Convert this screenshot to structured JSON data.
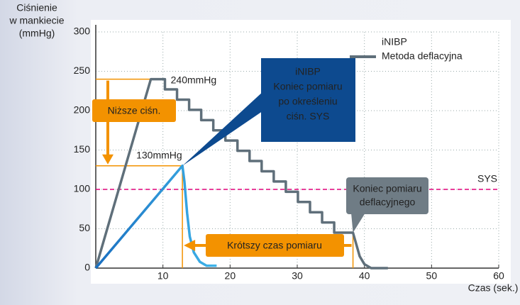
{
  "chart_data": {
    "type": "line",
    "ylabel_lines": [
      "Ciśnienie",
      "w mankiecie",
      "(mmHg)"
    ],
    "xlabel": "Czas (sek.)",
    "xlim": [
      0,
      60
    ],
    "ylim": [
      0,
      300
    ],
    "xticks": [
      10,
      20,
      30,
      40,
      50,
      60
    ],
    "yticks": [
      0,
      50,
      100,
      150,
      200,
      250,
      300
    ],
    "grid": true,
    "legend": "top-right",
    "series": [
      {
        "name": "iNIBP",
        "color": "#1a6fc0",
        "x": [
          0,
          12.9,
          13.2,
          13.6,
          14,
          14.6,
          15.5,
          16.5,
          18
        ],
        "values": [
          0,
          130,
          110,
          70,
          40,
          20,
          8,
          3,
          3
        ]
      },
      {
        "name": "Metoda deflacyjna",
        "color": "#5f6f7a",
        "x": [
          0,
          8.2,
          10.3,
          10.3,
          12.1,
          12.1,
          13.9,
          13.9,
          15.7,
          15.7,
          17.5,
          17.5,
          19.3,
          19.3,
          21.1,
          21.1,
          22.9,
          22.9,
          24.7,
          24.7,
          26.5,
          26.5,
          28.3,
          28.3,
          30.1,
          30.1,
          31.9,
          31.9,
          33.7,
          33.7,
          35.5,
          35.5,
          38.3,
          38.8,
          39.3,
          40,
          41,
          43.5
        ],
        "values": [
          0,
          240,
          240,
          227,
          227,
          214,
          214,
          201,
          201,
          188,
          188,
          175,
          175,
          162,
          162,
          149,
          149,
          136,
          136,
          123,
          123,
          110,
          110,
          97,
          97,
          84,
          84,
          71,
          71,
          58,
          58,
          45,
          45,
          30,
          15,
          5,
          0,
          0
        ]
      }
    ],
    "sys_line": {
      "value": 100,
      "label": "SYS",
      "color": "#e0007a"
    },
    "annotations": {
      "peak_deflation": "240mmHg",
      "peak_inibp": "130mmHg",
      "inibp_box": [
        "iNIBP",
        "Koniec pomiaru",
        "po określeniu",
        "ciśn. SYS"
      ],
      "deflation_box": [
        "Koniec pomiaru",
        "deflacyjnego"
      ],
      "lower_pressure": "Niższe ciśn.",
      "shorter_time": "Krótszy czas pomiaru"
    }
  }
}
